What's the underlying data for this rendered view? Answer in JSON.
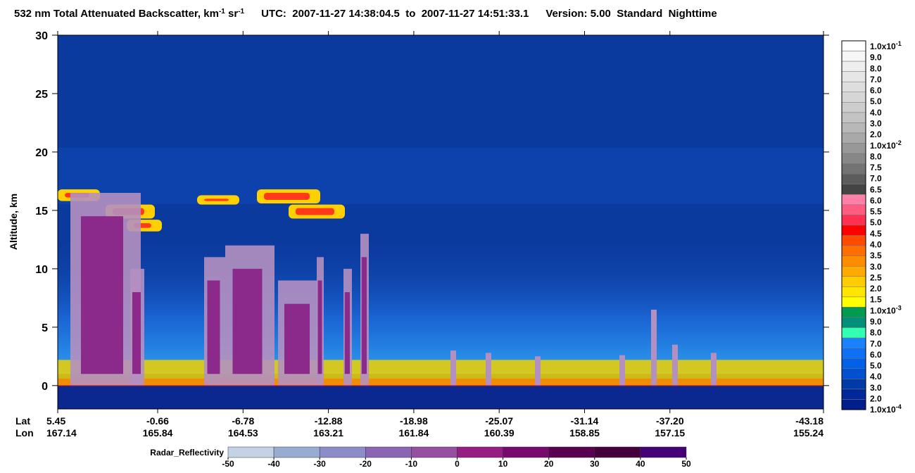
{
  "chart_data": {
    "type": "heatmap",
    "title": [
      "532 nm Total Attenuated Backscatter, km",
      "-1",
      " sr",
      "-1"
    ],
    "utc": "UTC:  2007-11-27 14:38:04.5  to  2007-11-27 14:51:33.1",
    "version": "Version: 5.00  Standard  Nighttime",
    "ylabel": "Altitude, km",
    "ylim": [
      -2,
      30
    ],
    "yticks": [
      0,
      5,
      10,
      15,
      20,
      25,
      30
    ],
    "x_rows": [
      {
        "name": "Lat",
        "labels": [
          "5.45",
          "-0.66",
          "-6.78",
          "-12.88",
          "-18.98",
          "-25.07",
          "-31.14",
          "-37.20",
          "-43.18"
        ]
      },
      {
        "name": "Lon",
        "labels": [
          "167.14",
          "165.84",
          "164.53",
          "163.21",
          "161.84",
          "160.39",
          "158.85",
          "157.15",
          "155.24"
        ]
      }
    ],
    "colorbar": {
      "labels": [
        {
          "label": "1.0x10",
          "sup": "-1"
        },
        "9.0",
        "8.0",
        "7.0",
        "6.0",
        "5.0",
        "4.0",
        "3.0",
        "2.0",
        {
          "label": "1.0x10",
          "sup": "-2"
        },
        "8.0",
        "7.5",
        "7.0",
        "6.5",
        "6.0",
        "5.5",
        "5.0",
        "4.5",
        "4.0",
        "3.5",
        "3.0",
        "2.5",
        "2.0",
        "1.5",
        {
          "label": "1.0x10",
          "sup": "-3"
        },
        "9.0",
        "8.0",
        "7.0",
        "6.0",
        "5.0",
        "4.0",
        "3.0",
        "2.0",
        {
          "label": "1.0x10",
          "sup": "-4"
        }
      ],
      "colors": [
        "#ffffff",
        "#f6f6f6",
        "#eeeeee",
        "#e6e6e6",
        "#dedede",
        "#d6d6d6",
        "#cdcdcd",
        "#c3c3c3",
        "#b8b8b8",
        "#a9a9a9",
        "#989898",
        "#878787",
        "#737373",
        "#5c5c5c",
        "#444444",
        "#ff80a8",
        "#ff5c80",
        "#ff3050",
        "#ff0000",
        "#ff4a00",
        "#ff6e00",
        "#ff8c00",
        "#ffaa00",
        "#ffcc00",
        "#ffe600",
        "#ffff00",
        "#009a50",
        "#00907a",
        "#33ffb0",
        "#1a82ff",
        "#0f70f5",
        "#0060e6",
        "#0050d0",
        "#003aa8",
        "#00289a",
        "#001e8c"
      ]
    },
    "radar_colorbar": {
      "title": "Radar_Reflectivity",
      "ticks": [
        -50,
        -40,
        -30,
        -20,
        -10,
        0,
        10,
        20,
        30,
        40,
        50
      ],
      "colors": [
        "#c4d2e6",
        "#98acd2",
        "#8c8cc8",
        "#8c64b4",
        "#9650a0",
        "#961e82",
        "#780a6e",
        "#5a0050",
        "#46003c",
        "#460078"
      ]
    }
  }
}
